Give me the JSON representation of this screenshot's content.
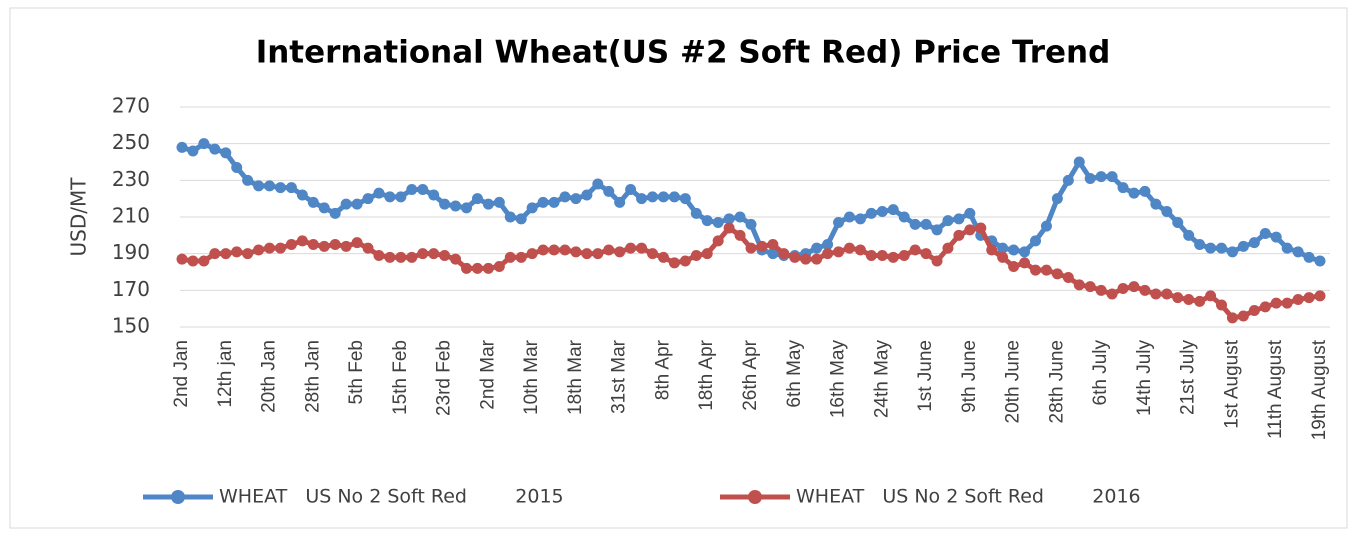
{
  "chart_data": {
    "type": "line",
    "title": "International Wheat(US #2 Soft Red) Price Trend",
    "y_label": "USD/MT",
    "categories": [
      "2nd Jan",
      null,
      null,
      null,
      "12th jan",
      null,
      null,
      null,
      "20th Jan",
      null,
      null,
      null,
      "28th Jan",
      null,
      null,
      null,
      "5th Feb",
      null,
      null,
      null,
      "15th Feb",
      null,
      null,
      null,
      "23rd Feb",
      null,
      null,
      null,
      "2nd Mar",
      null,
      null,
      null,
      "10th Mar",
      null,
      null,
      null,
      "18th Mar",
      null,
      null,
      null,
      "31st Mar",
      null,
      null,
      null,
      "8th  Apr",
      null,
      null,
      null,
      "18th Apr",
      null,
      null,
      null,
      "26th Apr",
      null,
      null,
      null,
      "6th May",
      null,
      null,
      null,
      "16th May",
      null,
      null,
      null,
      "24th May",
      null,
      null,
      null,
      "1st June",
      null,
      null,
      null,
      "9th June",
      null,
      null,
      null,
      "20th June",
      null,
      null,
      null,
      "28th June",
      null,
      null,
      null,
      "6th July",
      null,
      null,
      null,
      "14th July",
      null,
      null,
      null,
      "21st July",
      null,
      null,
      null,
      "1st August",
      null,
      null,
      null,
      "11th August",
      null,
      null,
      null,
      "19th August"
    ],
    "series": [
      {
        "name": "WHEAT   US No 2 Soft Red        2015",
        "color": "#4f86c6",
        "values": [
          248,
          246,
          250,
          247,
          245,
          237,
          230,
          227,
          227,
          226,
          226,
          222,
          218,
          215,
          212,
          217,
          217,
          220,
          223,
          221,
          221,
          225,
          225,
          222,
          217,
          216,
          215,
          220,
          217,
          218,
          210,
          209,
          215,
          218,
          218,
          221,
          220,
          222,
          228,
          224,
          218,
          225,
          220,
          221,
          221,
          221,
          220,
          212,
          208,
          207,
          209,
          210,
          206,
          192,
          190,
          189,
          189,
          190,
          193,
          195,
          207,
          210,
          209,
          212,
          213,
          214,
          210,
          206,
          206,
          203,
          208,
          209,
          212,
          200,
          197,
          193,
          192,
          191,
          197,
          205,
          220,
          230,
          240,
          231,
          232,
          232,
          226,
          223,
          224,
          217,
          213,
          207,
          200,
          195,
          193,
          193,
          191,
          194,
          196,
          201,
          199,
          193,
          191,
          188,
          186
        ]
      },
      {
        "name": "WHEAT   US No 2 Soft Red        2016",
        "color": "#c0504d",
        "values": [
          187,
          186,
          186,
          190,
          190,
          191,
          190,
          192,
          193,
          193,
          195,
          197,
          195,
          194,
          195,
          194,
          196,
          193,
          189,
          188,
          188,
          188,
          190,
          190,
          189,
          187,
          182,
          182,
          182,
          183,
          188,
          188,
          190,
          192,
          192,
          192,
          191,
          190,
          190,
          192,
          191,
          193,
          193,
          190,
          188,
          185,
          186,
          189,
          190,
          197,
          204,
          200,
          193,
          194,
          195,
          190,
          188,
          187,
          187,
          190,
          191,
          193,
          192,
          189,
          189,
          188,
          189,
          192,
          190,
          186,
          193,
          200,
          203,
          204,
          192,
          188,
          183,
          185,
          181,
          181,
          179,
          177,
          173,
          172,
          170,
          168,
          171,
          172,
          170,
          168,
          168,
          166,
          165,
          164,
          167,
          162,
          155,
          156,
          159,
          161,
          163,
          163,
          165,
          166,
          167
        ]
      }
    ],
    "ylim": [
      150,
      270
    ],
    "yticks": [
      150,
      170,
      190,
      210,
      230,
      250,
      270
    ],
    "grid": true,
    "legend": "bottom"
  }
}
